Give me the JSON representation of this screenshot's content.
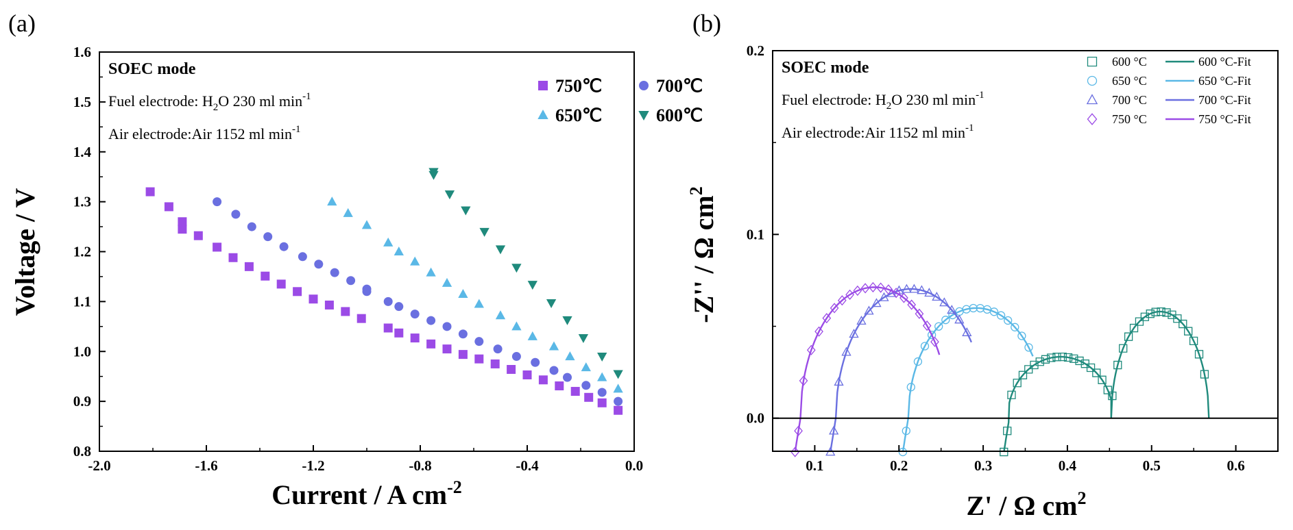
{
  "chart_data": [
    {
      "panel": "(a)",
      "type": "scatter",
      "title": "",
      "xlabel": "Current / A cm",
      "xlabel_sup": "-2",
      "ylabel": "Voltage / V",
      "xlim": [
        -2.0,
        0.0
      ],
      "ylim": [
        0.8,
        1.6
      ],
      "xticks": [
        "-2.0",
        "-1.6",
        "-1.2",
        "-0.8",
        "-0.4",
        "0.0"
      ],
      "yticks": [
        "0.8",
        "0.9",
        "1.0",
        "1.1",
        "1.2",
        "1.3",
        "1.4",
        "1.5",
        "1.6"
      ],
      "annotations": {
        "mode": "SOEC mode",
        "fuel": "Fuel electrode: H",
        "fuel_sub": "2",
        "fuel_rest": "O 230 ml min",
        "fuel_sup": "-1",
        "air": "Air electrode:Air 1152 ml min",
        "air_sup": "-1"
      },
      "series": [
        {
          "name": "750℃",
          "marker": "square",
          "color": "#9b4be6",
          "x": [
            -1.81,
            -1.74,
            -1.69,
            -1.69,
            -1.63,
            -1.56,
            -1.5,
            -1.44,
            -1.38,
            -1.32,
            -1.26,
            -1.2,
            -1.14,
            -1.08,
            -1.02,
            -0.92,
            -0.88,
            -0.82,
            -0.76,
            -0.7,
            -0.64,
            -0.58,
            -0.52,
            -0.46,
            -0.4,
            -0.34,
            -0.28,
            -0.22,
            -0.17,
            -0.12,
            -0.06
          ],
          "y": [
            1.32,
            1.29,
            1.26,
            1.245,
            1.232,
            1.209,
            1.188,
            1.17,
            1.151,
            1.135,
            1.12,
            1.105,
            1.093,
            1.08,
            1.066,
            1.047,
            1.037,
            1.027,
            1.015,
            1.005,
            0.994,
            0.985,
            0.975,
            0.964,
            0.953,
            0.943,
            0.931,
            0.92,
            0.908,
            0.897,
            0.882
          ]
        },
        {
          "name": "700℃",
          "marker": "circle",
          "color": "#6a6fe0",
          "x": [
            -1.56,
            -1.49,
            -1.43,
            -1.37,
            -1.31,
            -1.24,
            -1.18,
            -1.12,
            -1.06,
            -1.0,
            -1.0,
            -0.92,
            -0.88,
            -0.82,
            -0.76,
            -0.7,
            -0.64,
            -0.58,
            -0.51,
            -0.44,
            -0.37,
            -0.3,
            -0.25,
            -0.18,
            -0.12,
            -0.06
          ],
          "y": [
            1.3,
            1.275,
            1.25,
            1.23,
            1.21,
            1.19,
            1.175,
            1.158,
            1.142,
            1.125,
            1.12,
            1.1,
            1.09,
            1.075,
            1.062,
            1.05,
            1.035,
            1.02,
            1.005,
            0.99,
            0.978,
            0.962,
            0.948,
            0.932,
            0.918,
            0.9
          ]
        },
        {
          "name": "650℃",
          "marker": "triangle-up",
          "color": "#5ab8e6",
          "x": [
            -1.13,
            -1.07,
            -1.0,
            -0.92,
            -0.88,
            -0.82,
            -0.76,
            -0.7,
            -0.64,
            -0.58,
            -0.5,
            -0.44,
            -0.38,
            -0.3,
            -0.24,
            -0.18,
            -0.12,
            -0.06
          ],
          "y": [
            1.3,
            1.277,
            1.253,
            1.218,
            1.2,
            1.18,
            1.158,
            1.137,
            1.115,
            1.095,
            1.072,
            1.05,
            1.03,
            1.01,
            0.99,
            0.968,
            0.948,
            0.925
          ]
        },
        {
          "name": "600℃",
          "marker": "triangle-down",
          "color": "#1f8a7c",
          "x": [
            -0.75,
            -0.75,
            -0.69,
            -0.63,
            -0.56,
            -0.5,
            -0.44,
            -0.38,
            -0.31,
            -0.25,
            -0.19,
            -0.12,
            -0.06
          ],
          "y": [
            1.36,
            1.354,
            1.315,
            1.283,
            1.24,
            1.205,
            1.168,
            1.134,
            1.097,
            1.063,
            1.027,
            0.99,
            0.955
          ]
        }
      ]
    },
    {
      "panel": "(b)",
      "type": "scatter",
      "title": "",
      "xlabel": "Z' / Ω cm",
      "xlabel_sup": "2",
      "ylabel": "-Z'' / Ω cm",
      "ylabel_sup": "2",
      "xlim": [
        0.05,
        0.65
      ],
      "ylim": [
        -0.018,
        0.2
      ],
      "xticks": [
        "0.1",
        "0.2",
        "0.3",
        "0.4",
        "0.5",
        "0.6"
      ],
      "yticks": [
        "0.0",
        "0.1",
        "0.2"
      ],
      "annotations": {
        "mode": "SOEC mode",
        "fuel": "Fuel electrode: H",
        "fuel_sub": "2",
        "fuel_rest": "O 230 ml min",
        "fuel_sup": "-1",
        "air": "Air electrode:Air 1152 ml min",
        "air_sup": "-1"
      },
      "series": [
        {
          "name": "600 °C",
          "fit_name": "600 °C-Fit",
          "marker": "square-open",
          "color": "#1f8a7c",
          "arcs": [
            {
              "c": 0.392,
              "r": 0.063,
              "k": 0.53,
              "from": 0.331,
              "to": 0.452
            },
            {
              "c": 0.51,
              "r": 0.058,
              "k": 1.0,
              "from": 0.452,
              "to": 0.568
            }
          ]
        },
        {
          "name": "650 °C",
          "fit_name": "650 °C-Fit",
          "marker": "circle-open",
          "color": "#5ab8e6",
          "arcs": [
            {
              "c": 0.292,
              "r": 0.081,
              "k": 0.74,
              "from": 0.211,
              "to": 0.359
            }
          ]
        },
        {
          "name": "700 °C",
          "fit_name": "700 °C-Fit",
          "marker": "triangle-open",
          "color": "#6a6fe0",
          "arcs": [
            {
              "c": 0.214,
              "r": 0.089,
              "k": 0.79,
              "from": 0.125,
              "to": 0.286
            }
          ]
        },
        {
          "name": "750 °C",
          "fit_name": "750 °C-Fit",
          "marker": "diamond-open",
          "color": "#9b4be6",
          "arcs": [
            {
              "c": 0.171,
              "r": 0.088,
              "k": 0.81,
              "from": 0.083,
              "to": 0.248
            }
          ]
        }
      ]
    }
  ]
}
